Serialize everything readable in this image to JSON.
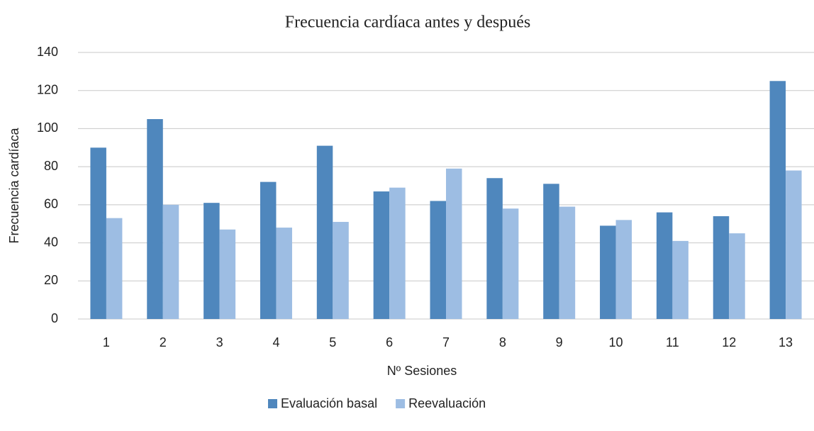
{
  "chart_data": {
    "type": "bar",
    "title": "Frecuencia cardíaca antes y después",
    "x_label": "Nº Sesiones",
    "y_label": "Frecuencia cardíaca",
    "categories": [
      "1",
      "2",
      "3",
      "4",
      "5",
      "6",
      "7",
      "8",
      "9",
      "10",
      "11",
      "12",
      "13"
    ],
    "series": [
      {
        "name": "Evaluación basal",
        "color": "#4f87bd",
        "values": [
          90,
          105,
          61,
          72,
          91,
          67,
          62,
          74,
          71,
          49,
          56,
          54,
          125
        ]
      },
      {
        "name": "Reevaluación",
        "color": "#9dbde3",
        "values": [
          53,
          60,
          47,
          48,
          51,
          69,
          79,
          58,
          59,
          52,
          41,
          45,
          78
        ]
      }
    ],
    "ylim": [
      0,
      140
    ],
    "yticks": [
      0,
      20,
      40,
      60,
      80,
      100,
      120,
      140
    ],
    "grid": true,
    "legend": "bottom"
  }
}
